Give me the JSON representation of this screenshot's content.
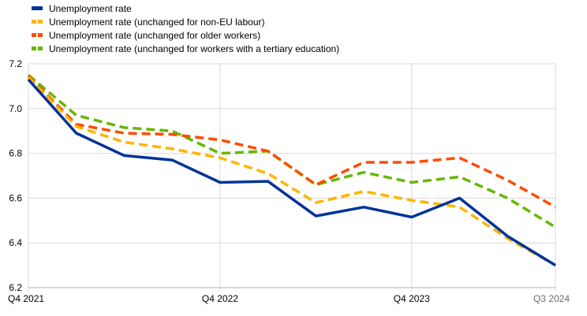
{
  "chart_data": {
    "type": "line",
    "x": [
      "Q4 2021",
      "Q1 2022",
      "Q2 2022",
      "Q3 2022",
      "Q4 2022",
      "Q1 2023",
      "Q2 2023",
      "Q3 2023",
      "Q4 2023",
      "Q1 2024",
      "Q2 2024",
      "Q3 2024"
    ],
    "x_tick_labels": [
      "Q4 2021",
      "Q4 2022",
      "Q4 2023",
      "Q3 2024"
    ],
    "ylim": [
      6.2,
      7.2
    ],
    "y_ticks": [
      6.2,
      6.4,
      6.6,
      6.8,
      7.0,
      7.2
    ],
    "y_tick_labels": [
      "6.2",
      "6.4",
      "6.6",
      "6.8",
      "7.0",
      "7.2"
    ],
    "grid": "horizontal",
    "legend_position": "top-left",
    "series": [
      {
        "name": "Unemployment rate",
        "color": "#003399",
        "style": "solid",
        "values": [
          7.13,
          6.89,
          6.79,
          6.77,
          6.67,
          6.675,
          6.52,
          6.56,
          6.515,
          6.6,
          6.43,
          6.3
        ]
      },
      {
        "name": "Unemployment rate (unchanged for non-EU labour)",
        "color": "#ffb400",
        "style": "dashed",
        "values": [
          7.14,
          6.92,
          6.85,
          6.82,
          6.78,
          6.71,
          6.58,
          6.63,
          6.59,
          6.56,
          6.42,
          6.3
        ]
      },
      {
        "name": "Unemployment rate (unchanged for older workers)",
        "color": "#ff4b00",
        "style": "dashed",
        "values": [
          7.145,
          6.93,
          6.89,
          6.885,
          6.86,
          6.81,
          6.66,
          6.76,
          6.76,
          6.78,
          6.68,
          6.56
        ]
      },
      {
        "name": "Unemployment rate (unchanged for workers with a tertiary education)",
        "color": "#65b800",
        "style": "dashed",
        "values": [
          7.15,
          6.97,
          6.915,
          6.9,
          6.8,
          6.81,
          6.66,
          6.715,
          6.67,
          6.695,
          6.6,
          6.47
        ]
      }
    ]
  }
}
